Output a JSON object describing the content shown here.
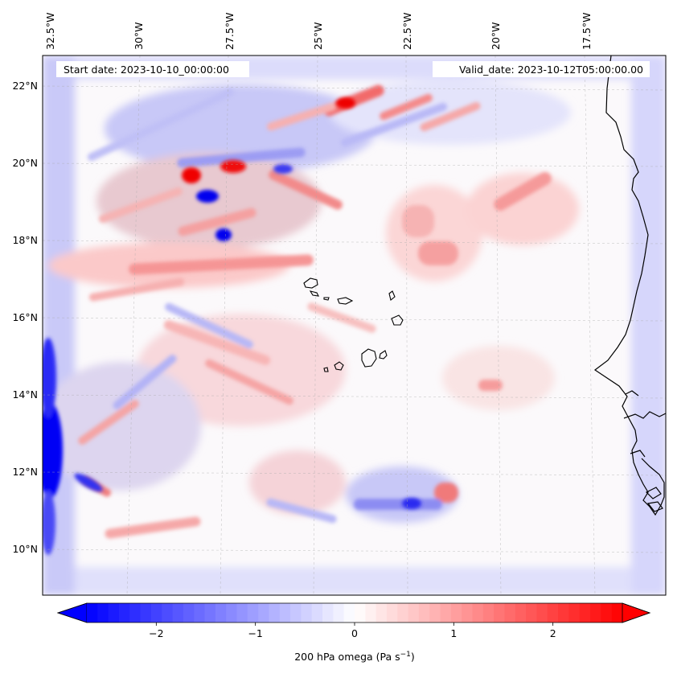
{
  "map": {
    "start_date_label": "Start date: 2023-10-10_00:00:00",
    "valid_date_label": "Valid_date: 2023-10-12T05:00:00.00",
    "lon_labels": [
      "32.5°W",
      "30°W",
      "27.5°W",
      "25°W",
      "22.5°W",
      "20°W",
      "17.5°W"
    ],
    "lat_labels": [
      "22°N",
      "20°N",
      "18°N",
      "16°N",
      "14°N",
      "12°N",
      "10°N"
    ]
  },
  "colorbar": {
    "label_text": "200 hPa omega (Pa s",
    "label_sup": "−1",
    "label_close": ")",
    "ticks": [
      "−2",
      "−1",
      "0",
      "1",
      "2"
    ],
    "min": -2.7,
    "max": 2.7,
    "tick_values": [
      -2,
      -1,
      0,
      1,
      2
    ],
    "colors": {
      "negative": "#0000ff",
      "zero": "#ffffff",
      "positive": "#ff0000"
    }
  }
}
